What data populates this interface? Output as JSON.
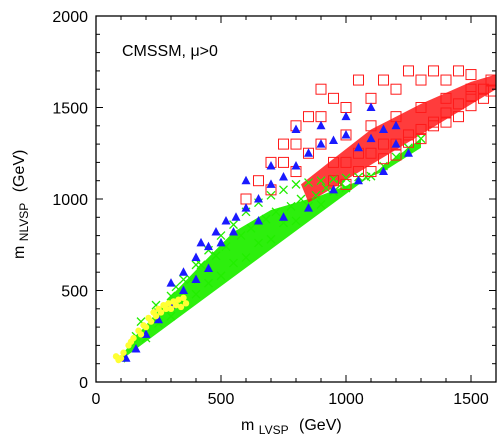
{
  "chart_data": {
    "type": "scatter",
    "title": "",
    "annotation": "CMSSM, μ>0",
    "xlabel": {
      "main": "m",
      "sub": "LVSP",
      "unit": "(GeV)"
    },
    "ylabel": {
      "main": "m",
      "sub": "NLVSP",
      "unit": "(GeV)"
    },
    "xlim": [
      0,
      1600
    ],
    "ylim": [
      0,
      2000
    ],
    "xticks": [
      0,
      500,
      1000,
      1500
    ],
    "yticks": [
      0,
      500,
      1000,
      1500,
      2000
    ],
    "grid": false,
    "legend": "none",
    "series": [
      {
        "marker": "x",
        "color": "#22ee00",
        "region": "green band above diagonal",
        "points": [
          [
            100,
            130
          ],
          [
            150,
            210
          ],
          [
            200,
            300
          ],
          [
            250,
            380
          ],
          [
            300,
            470
          ],
          [
            350,
            560
          ],
          [
            400,
            640
          ],
          [
            450,
            720
          ],
          [
            500,
            800
          ],
          [
            550,
            860
          ],
          [
            600,
            930
          ],
          [
            650,
            980
          ],
          [
            700,
            1020
          ],
          [
            750,
            1050
          ],
          [
            800,
            1080
          ],
          [
            850,
            1090
          ],
          [
            900,
            1100
          ],
          [
            950,
            1110
          ],
          [
            1000,
            1115
          ],
          [
            1050,
            1120
          ],
          [
            1100,
            1125
          ],
          [
            200,
            240
          ],
          [
            300,
            360
          ],
          [
            400,
            480
          ],
          [
            500,
            580
          ],
          [
            600,
            680
          ],
          [
            700,
            780
          ],
          [
            800,
            880
          ],
          [
            900,
            970
          ],
          [
            1000,
            1060
          ],
          [
            250,
            320
          ],
          [
            350,
            430
          ],
          [
            450,
            540
          ],
          [
            550,
            650
          ],
          [
            650,
            760
          ],
          [
            750,
            870
          ],
          [
            850,
            960
          ],
          [
            950,
            1040
          ],
          [
            180,
            330
          ],
          [
            240,
            420
          ],
          [
            320,
            520
          ],
          [
            420,
            640
          ],
          [
            520,
            740
          ],
          [
            620,
            840
          ],
          [
            720,
            930
          ],
          [
            820,
            1000
          ],
          [
            920,
            1060
          ],
          [
            160,
            250
          ],
          [
            280,
            410
          ],
          [
            380,
            560
          ],
          [
            480,
            690
          ],
          [
            580,
            800
          ],
          [
            680,
            890
          ],
          [
            780,
            960
          ],
          [
            880,
            1020
          ],
          [
            980,
            1080
          ],
          [
            1080,
            1120
          ],
          [
            1150,
            1180
          ],
          [
            1200,
            1230
          ],
          [
            1250,
            1280
          ],
          [
            1300,
            1330
          ]
        ]
      },
      {
        "marker": "square-open",
        "color": "#ff1a1a",
        "region": "red band, upper-right",
        "points": [
          [
            600,
            1000
          ],
          [
            650,
            1100
          ],
          [
            700,
            1050
          ],
          [
            750,
            1200
          ],
          [
            800,
            1150
          ],
          [
            850,
            1250
          ],
          [
            900,
            1300
          ],
          [
            950,
            1200
          ],
          [
            1000,
            1350
          ],
          [
            1050,
            1250
          ],
          [
            1100,
            1400
          ],
          [
            1150,
            1300
          ],
          [
            1200,
            1450
          ],
          [
            1250,
            1350
          ],
          [
            1300,
            1500
          ],
          [
            1350,
            1400
          ],
          [
            1400,
            1550
          ],
          [
            1450,
            1450
          ],
          [
            1500,
            1600
          ],
          [
            1550,
            1550
          ],
          [
            1580,
            1650
          ],
          [
            900,
            1600
          ],
          [
            950,
            1550
          ],
          [
            1000,
            1500
          ],
          [
            1050,
            1650
          ],
          [
            1100,
            1550
          ],
          [
            1150,
            1650
          ],
          [
            1200,
            1600
          ],
          [
            1250,
            1700
          ],
          [
            1300,
            1650
          ],
          [
            1350,
            1700
          ],
          [
            1400,
            1650
          ],
          [
            1450,
            1700
          ],
          [
            1500,
            1680
          ],
          [
            800,
            1400
          ],
          [
            850,
            1450
          ],
          [
            900,
            1450
          ],
          [
            700,
            1200
          ],
          [
            750,
            1300
          ],
          [
            800,
            1300
          ],
          [
            1000,
            1200
          ],
          [
            1100,
            1250
          ],
          [
            1200,
            1300
          ],
          [
            1300,
            1380
          ],
          [
            1400,
            1470
          ],
          [
            1500,
            1560
          ],
          [
            1550,
            1600
          ],
          [
            1050,
            1150
          ],
          [
            1150,
            1220
          ],
          [
            1250,
            1310
          ],
          [
            1350,
            1420
          ],
          [
            1450,
            1520
          ],
          [
            950,
            1100
          ],
          [
            1000,
            1080
          ],
          [
            1100,
            1150
          ],
          [
            1200,
            1240
          ],
          [
            1300,
            1330
          ],
          [
            1400,
            1420
          ],
          [
            1500,
            1510
          ],
          [
            1580,
            1590
          ]
        ]
      },
      {
        "marker": "triangle",
        "color": "#1a1aff",
        "region": "scattered along green/red band",
        "points": [
          [
            120,
            130
          ],
          [
            160,
            180
          ],
          [
            200,
            260
          ],
          [
            250,
            340
          ],
          [
            300,
            420
          ],
          [
            350,
            500
          ],
          [
            400,
            560
          ],
          [
            420,
            760
          ],
          [
            450,
            620
          ],
          [
            480,
            820
          ],
          [
            520,
            880
          ],
          [
            560,
            900
          ],
          [
            600,
            950
          ],
          [
            650,
            1000
          ],
          [
            700,
            1080
          ],
          [
            750,
            1120
          ],
          [
            800,
            1180
          ],
          [
            850,
            1250
          ],
          [
            900,
            1300
          ],
          [
            950,
            1320
          ],
          [
            1000,
            1350
          ],
          [
            1050,
            1280
          ],
          [
            1100,
            1330
          ],
          [
            1150,
            1380
          ],
          [
            1200,
            1400
          ],
          [
            600,
            1100
          ],
          [
            700,
            1180
          ],
          [
            800,
            1380
          ],
          [
            900,
            1400
          ],
          [
            1000,
            1450
          ],
          [
            1100,
            1500
          ],
          [
            1200,
            1300
          ],
          [
            550,
            820
          ],
          [
            650,
            880
          ],
          [
            750,
            900
          ],
          [
            850,
            950
          ],
          [
            950,
            1050
          ],
          [
            1050,
            1100
          ],
          [
            1150,
            1150
          ],
          [
            1250,
            1250
          ],
          [
            300,
            540
          ],
          [
            350,
            600
          ],
          [
            400,
            680
          ],
          [
            450,
            740
          ],
          [
            500,
            760
          ]
        ]
      },
      {
        "marker": "circle",
        "color": "#ffff33",
        "region": "low-mass corner",
        "points": [
          [
            80,
            140
          ],
          [
            100,
            130
          ],
          [
            110,
            160
          ],
          [
            130,
            200
          ],
          [
            150,
            240
          ],
          [
            170,
            280
          ],
          [
            190,
            310
          ],
          [
            210,
            350
          ],
          [
            230,
            380
          ],
          [
            250,
            400
          ],
          [
            270,
            420
          ],
          [
            290,
            430
          ],
          [
            310,
            440
          ],
          [
            330,
            450
          ],
          [
            350,
            460
          ],
          [
            200,
            300
          ],
          [
            240,
            360
          ],
          [
            280,
            400
          ],
          [
            320,
            420
          ],
          [
            360,
            430
          ],
          [
            90,
            120
          ],
          [
            140,
            220
          ],
          [
            180,
            260
          ],
          [
            220,
            330
          ],
          [
            260,
            380
          ],
          [
            300,
            400
          ],
          [
            340,
            410
          ]
        ]
      }
    ]
  }
}
